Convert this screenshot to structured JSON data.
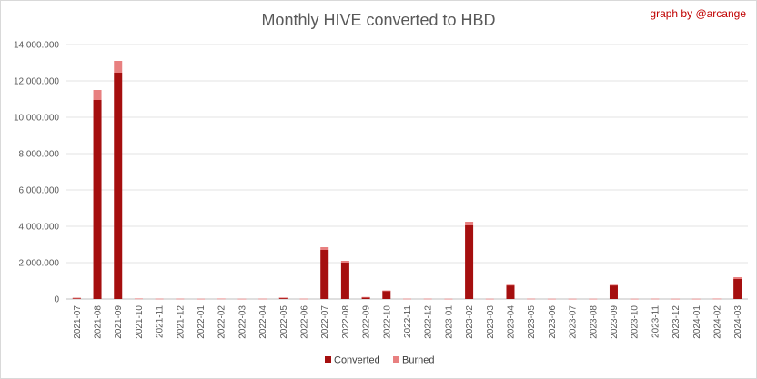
{
  "chart_data": {
    "type": "bar",
    "stacked": true,
    "title": "Monthly HIVE converted to HBD",
    "credit": "graph by @arcange",
    "xlabel": "",
    "ylabel": "",
    "ylim": [
      0,
      14000000
    ],
    "yticks": [
      0,
      2000000,
      4000000,
      6000000,
      8000000,
      10000000,
      12000000,
      14000000
    ],
    "ytick_labels": [
      "0",
      "2.000.000",
      "4.000.000",
      "6.000.000",
      "8.000.000",
      "10.000.000",
      "12.000.000",
      "14.000.000"
    ],
    "grid": true,
    "legend_position": "bottom",
    "categories": [
      "2021-07",
      "2021-08",
      "2021-09",
      "2021-10",
      "2021-11",
      "2021-12",
      "2022-01",
      "2022-02",
      "2022-03",
      "2022-04",
      "2022-05",
      "2022-06",
      "2022-07",
      "2022-08",
      "2022-09",
      "2022-10",
      "2022-11",
      "2022-12",
      "2023-01",
      "2023-02",
      "2023-03",
      "2023-04",
      "2023-05",
      "2023-06",
      "2023-07",
      "2023-08",
      "2023-09",
      "2023-10",
      "2023-11",
      "2023-12",
      "2024-01",
      "2024-02",
      "2024-03"
    ],
    "series": [
      {
        "name": "Converted",
        "color": "#a50f0f",
        "values": [
          60000,
          10950000,
          12450000,
          0,
          0,
          0,
          0,
          0,
          0,
          0,
          70000,
          0,
          2700000,
          2000000,
          100000,
          450000,
          0,
          0,
          0,
          4050000,
          0,
          750000,
          0,
          0,
          0,
          0,
          750000,
          0,
          0,
          0,
          0,
          0,
          1100000
        ]
      },
      {
        "name": "Burned",
        "color": "#e88080",
        "values": [
          5000,
          550000,
          650000,
          30000,
          20000,
          20000,
          15000,
          25000,
          15000,
          20000,
          10000,
          20000,
          150000,
          100000,
          10000,
          20000,
          20000,
          20000,
          15000,
          200000,
          15000,
          30000,
          20000,
          15000,
          15000,
          15000,
          30000,
          15000,
          20000,
          15000,
          15000,
          25000,
          100000
        ]
      }
    ]
  }
}
